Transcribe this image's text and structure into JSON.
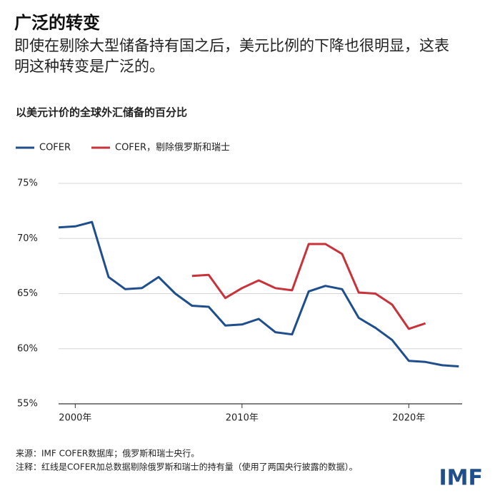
{
  "chart_data": {
    "type": "line",
    "title": "广泛的转变",
    "subtitle": "即使在剔除大型储备持有国之后，美元比例的下降也很明显，这表明这种转变是广泛的。",
    "chart_title": "以美元计价的全球外汇储备的百分比",
    "source": "来源：IMF COFER数据库；俄罗斯和瑞士央行。",
    "note": "注释：红线是COFER加总数据剔除俄罗斯和瑞士的持有量（使用了两国央行披露的数据）。",
    "logo": "IMF",
    "x": [
      1999,
      2000,
      2001,
      2002,
      2003,
      2004,
      2005,
      2006,
      2007,
      2008,
      2009,
      2010,
      2011,
      2012,
      2013,
      2014,
      2015,
      2016,
      2017,
      2018,
      2019,
      2020,
      2021,
      2022,
      2023
    ],
    "series": [
      {
        "name": "COFER",
        "color": "#1f4e8c",
        "values": [
          71.0,
          71.1,
          71.5,
          66.5,
          65.4,
          65.5,
          66.5,
          65.0,
          63.9,
          63.8,
          62.1,
          62.2,
          62.7,
          61.5,
          61.3,
          65.2,
          65.7,
          65.4,
          62.8,
          61.9,
          60.8,
          58.9,
          58.8,
          58.5,
          58.4
        ]
      },
      {
        "name": "COFER，剔除俄罗斯和瑞士",
        "color": "#c8323a",
        "values": [
          null,
          null,
          null,
          null,
          null,
          null,
          null,
          null,
          66.6,
          66.7,
          64.6,
          65.5,
          66.2,
          65.5,
          65.3,
          69.5,
          69.5,
          68.6,
          65.1,
          65.0,
          64.0,
          61.8,
          62.3,
          null,
          null
        ]
      }
    ],
    "xlim": [
      1999,
      2023.2
    ],
    "xticks": [
      {
        "value": 2000,
        "label": "2000年"
      },
      {
        "value": 2010,
        "label": "2010年"
      },
      {
        "value": 2020,
        "label": "2020年"
      }
    ],
    "ylim": [
      55,
      75
    ],
    "yticks": [
      {
        "value": 55,
        "label": "55%"
      },
      {
        "value": 60,
        "label": "60%"
      },
      {
        "value": 65,
        "label": "65%"
      },
      {
        "value": 70,
        "label": "70%"
      },
      {
        "value": 75,
        "label": "75%"
      }
    ],
    "grid": true
  }
}
